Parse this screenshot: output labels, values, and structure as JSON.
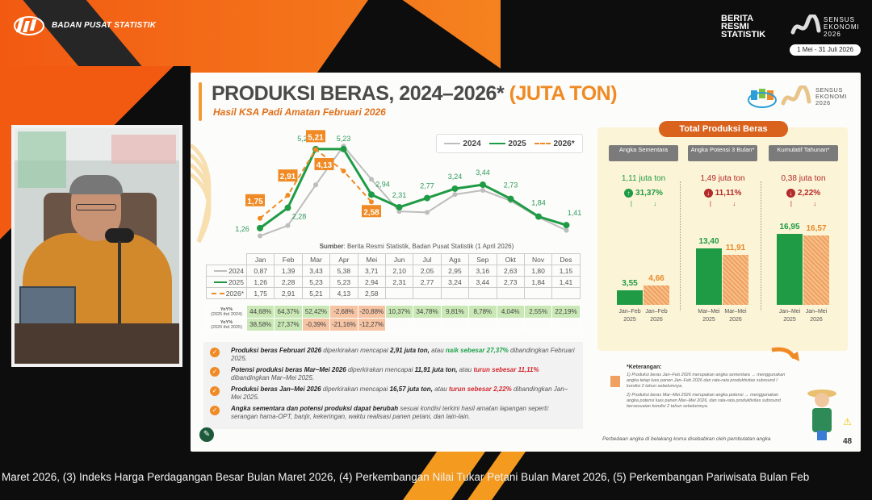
{
  "broadcast": {
    "org_name": "BADAN PUSAT STATISTIK",
    "brs_label": "BERITA RESMI STATISTIK",
    "census_label": "SENSUS EKONOMI 2026",
    "census_dates": "1 Mei - 31 Juli 2026",
    "ticker": "Maret 2026, (3) Indeks  Harga Perdagangan Besar Bulan Maret 2026, (4) Perkembangan Nilai Tukar Petani Bulan Maret 2026, (5) Perkembangan Pariwisata Bulan Feb"
  },
  "slide": {
    "title": "PRODUKSI BERAS, 2024–2026*",
    "title_unit": "(JUTA TON)",
    "subtitle": "Hasil KSA Padi Amatan Februari 2026",
    "logo_census": "SENSUS EKONOMI 2026",
    "source_label": "Sumber",
    "source": ": Berita Resmi Statistik, Badan Pusat Statistik (1 April 2026)",
    "page_number": "48",
    "footnote": "Perbedaan angka di belakang koma disebabkan oleh pembulatan angka"
  },
  "chart_data": {
    "type": "line",
    "categories": [
      "Jan",
      "Feb",
      "Mar",
      "Apr",
      "Mei",
      "Jun",
      "Jul",
      "Ags",
      "Sep",
      "Okt",
      "Nov",
      "Des"
    ],
    "series": [
      {
        "name": "2024",
        "color": "#bdbdbd",
        "values": [
          0.87,
          1.39,
          3.43,
          5.38,
          3.71,
          2.1,
          2.05,
          2.95,
          3.16,
          2.63,
          1.8,
          1.15
        ],
        "labels": [
          "0,87",
          "1,39",
          "3,43",
          "5,38",
          "3,71",
          "2,10",
          "2,05",
          "2,95",
          "3,16",
          "2,63",
          "1,80",
          "1,15"
        ]
      },
      {
        "name": "2025",
        "color": "#1f9b45",
        "values": [
          1.26,
          2.28,
          5.23,
          5.23,
          2.94,
          2.31,
          2.77,
          3.24,
          3.44,
          2.73,
          1.84,
          1.41
        ],
        "labels": [
          "1,26",
          "2,28",
          "5,23",
          "5,23",
          "2,94",
          "2,31",
          "2,77",
          "3,24",
          "3,44",
          "2,73",
          "1,84",
          "1,41"
        ]
      },
      {
        "name": "2026*",
        "color": "#f08a24",
        "values": [
          1.75,
          2.91,
          5.21,
          4.13,
          2.58,
          null,
          null,
          null,
          null,
          null,
          null,
          null
        ],
        "labels": [
          "1,75",
          "2,91",
          "5,21",
          "4,13",
          "2,58",
          "",
          "",
          "",
          "",
          "",
          "",
          ""
        ]
      }
    ],
    "yoy": [
      {
        "label_top": "YoY%",
        "label_bottom": "(2025 thd 2024)",
        "values": [
          "44,68%",
          "64,37%",
          "52,42%",
          "-2,68%",
          "-20,88%",
          "10,37%",
          "34,78%",
          "9,81%",
          "8,78%",
          "4,04%",
          "2,55%",
          "22,19%"
        ]
      },
      {
        "label_top": "YoY%",
        "label_bottom": "(2026 thd 2025)",
        "values": [
          "38,58%",
          "27,37%",
          "-0,39%",
          "-21,16%",
          "-12,27%",
          "",
          "",
          "",
          "",
          "",
          "",
          ""
        ]
      }
    ],
    "grid": false,
    "legend": "top-right"
  },
  "bullets": [
    {
      "bold": "Produksi beras Februari 2026",
      "t1": " diperkirakan mencapai ",
      "val": "2,91 juta ton,",
      "t2": " atau ",
      "chg": "naik sebesar 27,37%",
      "dir": "up",
      "t3": " dibandingkan Februari 2025."
    },
    {
      "bold": "Potensi produksi beras Mar–Mei 2026",
      "t1": " diperkirakan mencapai ",
      "val": "11,91 juta ton,",
      "t2": " atau ",
      "chg": "turun sebesar 11,11%",
      "dir": "dn",
      "t3": " dibandingkan Mar–Mei 2025."
    },
    {
      "bold": "Produksi beras Jan–Mei 2026",
      "t1": " diperkirakan mencapai ",
      "val": "16,57 juta ton,",
      "t2": " atau ",
      "chg": "turun sebesar 2,22%",
      "dir": "dn",
      "t3": " dibandingkan Jan–Mei 2025."
    },
    {
      "bold": "Angka sementara dan potensi produksi dapat berubah",
      "t1": " sesuai kondisi terkini hasil amatan lapangan seperti: serangan hama-OPT, banjir, kekeringan, waktu realisasi panen petani, dan lain-lain.",
      "val": "",
      "t2": "",
      "chg": "",
      "dir": "",
      "t3": ""
    }
  ],
  "total_panel": {
    "title": "Total Produksi Beras",
    "groups": [
      {
        "header": "Angka Sementara",
        "diff": "1,11 juta ton",
        "pct": "31,37%",
        "dir": "up",
        "bars": [
          {
            "value": 3.55,
            "label": "3,55",
            "period": "Jan–Feb",
            "year": "2025"
          },
          {
            "value": 4.66,
            "label": "4,66",
            "period": "Jan–Feb",
            "year": "2026"
          }
        ]
      },
      {
        "header": "Angka Potensi 3 Bulan*",
        "diff": "1,49 juta ton",
        "pct": "11,11%",
        "dir": "down",
        "bars": [
          {
            "value": 13.4,
            "label": "13,40",
            "period": "Mar–Mei",
            "year": "2025"
          },
          {
            "value": 11.91,
            "label": "11,91",
            "period": "Mar–Mei",
            "year": "2026"
          }
        ]
      },
      {
        "header": "Kumulatif Tahunan*",
        "diff": "0,38 juta ton",
        "pct": "2,22%",
        "dir": "down",
        "bars": [
          {
            "value": 16.95,
            "label": "16,95",
            "period": "Jan–Mei",
            "year": "2025"
          },
          {
            "value": 16.57,
            "label": "16,57",
            "period": "Jan–Mei",
            "year": "2026"
          }
        ]
      }
    ],
    "colors": {
      "y2025": "#1f9b45",
      "y2026": "#f0a060",
      "up": "#1f9b45",
      "down": "#b22a2a"
    }
  },
  "keterangan": {
    "title": "*Keterangan:",
    "items": [
      "1) Produksi beras Jan–Feb 2026 merupakan angka sementara → menggunakan angka tetap luas panen Jan–Feb 2026 dan rata-rata produktivitas subround I kondisi 2 tahun sebelumnya.",
      "2) Produksi beras Mar–Mei 2026 merupakan angka potensi → menggunakan angka potensi luas panen Mar–Mei 2026, dan rata-rata produktivitas subround bersesuaian kondisi 2 tahun sebelumnya."
    ]
  }
}
